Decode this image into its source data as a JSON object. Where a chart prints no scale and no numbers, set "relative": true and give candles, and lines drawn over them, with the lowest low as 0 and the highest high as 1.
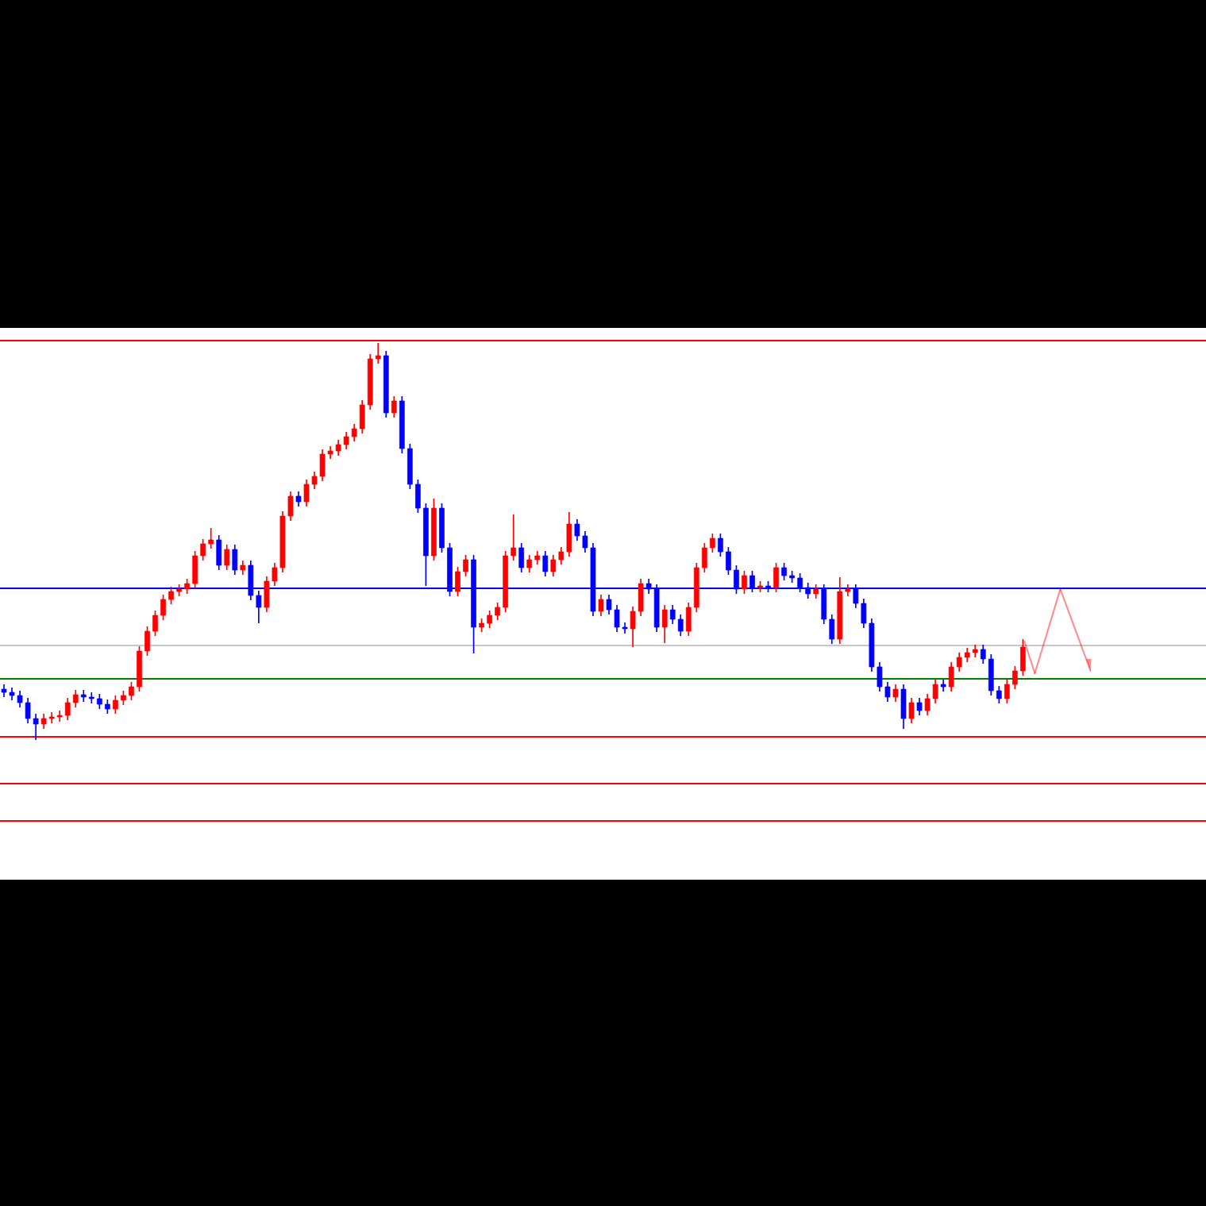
{
  "chart_data": {
    "type": "candlestick",
    "relative": true,
    "categories": [
      null,
      null,
      null,
      null,
      null,
      null,
      null,
      null,
      null,
      null,
      null,
      null,
      null,
      null,
      null,
      null,
      null,
      null,
      null,
      null,
      null,
      null,
      null,
      null,
      null,
      null,
      null,
      null,
      null,
      null,
      null,
      null,
      null,
      null,
      null,
      null,
      null,
      null,
      null,
      null,
      null,
      null,
      null,
      null,
      null,
      null,
      null,
      null,
      null,
      null,
      null,
      null,
      null,
      null,
      null,
      null,
      null,
      null,
      null,
      null,
      null,
      null,
      null,
      null,
      null,
      null,
      null,
      null,
      null,
      null,
      null,
      null,
      null,
      null,
      null,
      null,
      null,
      null,
      null,
      null,
      null,
      null,
      null,
      null,
      null,
      null,
      null,
      null,
      null,
      null,
      null,
      null,
      null,
      null,
      null,
      null,
      null,
      null,
      null,
      null,
      null,
      null,
      null,
      null,
      null,
      null,
      null,
      null,
      null,
      null,
      null,
      null,
      null,
      null,
      null,
      null,
      null,
      null,
      null,
      null,
      null,
      null,
      null,
      null,
      null,
      null,
      null,
      null,
      null
    ],
    "ohlc": [
      [
        0.128,
        0.14,
        0.108,
        0.12
      ],
      [
        0.12,
        0.132,
        0.1,
        0.112
      ],
      [
        0.112,
        0.124,
        0.082,
        0.094
      ],
      [
        0.094,
        0.106,
        0.042,
        0.054
      ],
      [
        0.054,
        0.066,
        0,
        0.04
      ],
      [
        0.04,
        0.066,
        0.028,
        0.054
      ],
      [
        0.054,
        0.07,
        0.042,
        0.058
      ],
      [
        0.058,
        0.074,
        0.046,
        0.062
      ],
      [
        0.062,
        0.106,
        0.05,
        0.094
      ],
      [
        0.094,
        0.126,
        0.082,
        0.114
      ],
      [
        0.114,
        0.126,
        0.096,
        0.108
      ],
      [
        0.108,
        0.12,
        0.092,
        0.104
      ],
      [
        0.104,
        0.116,
        0.078,
        0.09
      ],
      [
        0.09,
        0.102,
        0.066,
        0.078
      ],
      [
        0.078,
        0.112,
        0.066,
        0.1
      ],
      [
        0.1,
        0.124,
        0.088,
        0.112
      ],
      [
        0.112,
        0.146,
        0.1,
        0.134
      ],
      [
        0.134,
        0.236,
        0.122,
        0.224
      ],
      [
        0.224,
        0.286,
        0.212,
        0.274
      ],
      [
        0.274,
        0.326,
        0.262,
        0.314
      ],
      [
        0.314,
        0.366,
        0.302,
        0.354
      ],
      [
        0.354,
        0.386,
        0.342,
        0.374
      ],
      [
        0.374,
        0.392,
        0.362,
        0.38
      ],
      [
        0.38,
        0.406,
        0.368,
        0.394
      ],
      [
        0.394,
        0.476,
        0.382,
        0.464
      ],
      [
        0.464,
        0.506,
        0.452,
        0.494
      ],
      [
        0.494,
        0.534,
        0.482,
        0.504
      ],
      [
        0.504,
        0.516,
        0.428,
        0.44
      ],
      [
        0.44,
        0.492,
        0.428,
        0.48
      ],
      [
        0.48,
        0.492,
        0.416,
        0.428
      ],
      [
        0.428,
        0.452,
        0.416,
        0.44
      ],
      [
        0.44,
        0.452,
        0.352,
        0.364
      ],
      [
        0.364,
        0.376,
        0.294,
        0.334
      ],
      [
        0.334,
        0.412,
        0.322,
        0.4
      ],
      [
        0.4,
        0.446,
        0.388,
        0.434
      ],
      [
        0.434,
        0.576,
        0.422,
        0.564
      ],
      [
        0.564,
        0.626,
        0.552,
        0.614
      ],
      [
        0.614,
        0.626,
        0.588,
        0.6
      ],
      [
        0.6,
        0.656,
        0.588,
        0.644
      ],
      [
        0.644,
        0.676,
        0.632,
        0.664
      ],
      [
        0.664,
        0.732,
        0.652,
        0.72
      ],
      [
        0.72,
        0.74,
        0.708,
        0.728
      ],
      [
        0.728,
        0.756,
        0.716,
        0.744
      ],
      [
        0.744,
        0.776,
        0.732,
        0.764
      ],
      [
        0.764,
        0.796,
        0.752,
        0.784
      ],
      [
        0.784,
        0.856,
        0.772,
        0.844
      ],
      [
        0.844,
        0.972,
        0.832,
        0.96
      ],
      [
        0.96,
        1.0,
        0.948,
        0.968
      ],
      [
        0.968,
        0.98,
        0.812,
        0.824
      ],
      [
        0.824,
        0.866,
        0.812,
        0.854
      ],
      [
        0.854,
        0.866,
        0.722,
        0.734
      ],
      [
        0.734,
        0.746,
        0.632,
        0.644
      ],
      [
        0.644,
        0.656,
        0.572,
        0.584
      ],
      [
        0.584,
        0.596,
        0.388,
        0.464
      ],
      [
        0.464,
        0.608,
        0.452,
        0.584
      ],
      [
        0.584,
        0.596,
        0.472,
        0.484
      ],
      [
        0.484,
        0.496,
        0.362,
        0.374
      ],
      [
        0.374,
        0.436,
        0.362,
        0.424
      ],
      [
        0.424,
        0.466,
        0.412,
        0.454
      ],
      [
        0.454,
        0.466,
        0.218,
        0.284
      ],
      [
        0.284,
        0.306,
        0.272,
        0.294
      ],
      [
        0.294,
        0.326,
        0.282,
        0.314
      ],
      [
        0.314,
        0.346,
        0.302,
        0.334
      ],
      [
        0.334,
        0.476,
        0.322,
        0.464
      ],
      [
        0.464,
        0.568,
        0.452,
        0.484
      ],
      [
        0.484,
        0.496,
        0.422,
        0.434
      ],
      [
        0.434,
        0.466,
        0.422,
        0.454
      ],
      [
        0.454,
        0.476,
        0.442,
        0.464
      ],
      [
        0.464,
        0.476,
        0.412,
        0.424
      ],
      [
        0.424,
        0.466,
        0.412,
        0.454
      ],
      [
        0.454,
        0.486,
        0.442,
        0.474
      ],
      [
        0.474,
        0.574,
        0.462,
        0.544
      ],
      [
        0.544,
        0.556,
        0.502,
        0.514
      ],
      [
        0.514,
        0.526,
        0.472,
        0.484
      ],
      [
        0.484,
        0.496,
        0.312,
        0.324
      ],
      [
        0.324,
        0.366,
        0.312,
        0.354
      ],
      [
        0.354,
        0.366,
        0.316,
        0.328
      ],
      [
        0.328,
        0.34,
        0.272,
        0.284
      ],
      [
        0.284,
        0.296,
        0.268,
        0.28
      ],
      [
        0.28,
        0.336,
        0.234,
        0.324
      ],
      [
        0.324,
        0.406,
        0.312,
        0.394
      ],
      [
        0.394,
        0.406,
        0.368,
        0.38
      ],
      [
        0.38,
        0.392,
        0.272,
        0.284
      ],
      [
        0.284,
        0.34,
        0.244,
        0.328
      ],
      [
        0.328,
        0.34,
        0.292,
        0.304
      ],
      [
        0.304,
        0.316,
        0.262,
        0.274
      ],
      [
        0.274,
        0.346,
        0.262,
        0.334
      ],
      [
        0.334,
        0.446,
        0.322,
        0.434
      ],
      [
        0.434,
        0.496,
        0.422,
        0.484
      ],
      [
        0.484,
        0.52,
        0.472,
        0.508
      ],
      [
        0.508,
        0.52,
        0.462,
        0.474
      ],
      [
        0.474,
        0.486,
        0.416,
        0.428
      ],
      [
        0.428,
        0.44,
        0.368,
        0.38
      ],
      [
        0.38,
        0.426,
        0.368,
        0.414
      ],
      [
        0.414,
        0.426,
        0.372,
        0.384
      ],
      [
        0.384,
        0.4,
        0.372,
        0.388
      ],
      [
        0.388,
        0.4,
        0.372,
        0.384
      ],
      [
        0.384,
        0.446,
        0.372,
        0.434
      ],
      [
        0.434,
        0.446,
        0.402,
        0.414
      ],
      [
        0.414,
        0.426,
        0.396,
        0.408
      ],
      [
        0.408,
        0.42,
        0.372,
        0.384
      ],
      [
        0.384,
        0.396,
        0.356,
        0.368
      ],
      [
        0.368,
        0.392,
        0.356,
        0.38
      ],
      [
        0.38,
        0.392,
        0.292,
        0.304
      ],
      [
        0.304,
        0.316,
        0.242,
        0.254
      ],
      [
        0.254,
        0.41,
        0.242,
        0.374
      ],
      [
        0.374,
        0.392,
        0.362,
        0.38
      ],
      [
        0.38,
        0.392,
        0.332,
        0.344
      ],
      [
        0.344,
        0.356,
        0.282,
        0.294
      ],
      [
        0.294,
        0.306,
        0.172,
        0.184
      ],
      [
        0.184,
        0.196,
        0.122,
        0.134
      ],
      [
        0.134,
        0.146,
        0.096,
        0.108
      ],
      [
        0.108,
        0.14,
        0.096,
        0.128
      ],
      [
        0.128,
        0.14,
        0.028,
        0.054
      ],
      [
        0.054,
        0.106,
        0.042,
        0.094
      ],
      [
        0.094,
        0.106,
        0.062,
        0.074
      ],
      [
        0.074,
        0.116,
        0.062,
        0.104
      ],
      [
        0.104,
        0.152,
        0.092,
        0.14
      ],
      [
        0.14,
        0.152,
        0.122,
        0.134
      ],
      [
        0.134,
        0.196,
        0.122,
        0.184
      ],
      [
        0.184,
        0.22,
        0.172,
        0.208
      ],
      [
        0.208,
        0.232,
        0.196,
        0.22
      ],
      [
        0.22,
        0.24,
        0.208,
        0.228
      ],
      [
        0.228,
        0.24,
        0.192,
        0.204
      ],
      [
        0.204,
        0.216,
        0.112,
        0.124
      ],
      [
        0.124,
        0.136,
        0.092,
        0.104
      ],
      [
        0.104,
        0.152,
        0.092,
        0.14
      ],
      [
        0.14,
        0.186,
        0.128,
        0.174
      ],
      [
        0.174,
        0.254,
        0.162,
        0.234
      ]
    ],
    "colors": [
      "#0000ff",
      "#0000ff",
      "#0000ff",
      "#0000ff",
      "#0000ff",
      "#ff0000",
      "#ff0000",
      "#ff0000",
      "#ff0000",
      "#ff0000",
      "#0000ff",
      "#0000ff",
      "#0000ff",
      "#0000ff",
      "#ff0000",
      "#ff0000",
      "#ff0000",
      "#ff0000",
      "#ff0000",
      "#ff0000",
      "#ff0000",
      "#ff0000",
      "#ff0000",
      "#ff0000",
      "#ff0000",
      "#ff0000",
      "#ff0000",
      "#0000ff",
      "#ff0000",
      "#0000ff",
      "#ff0000",
      "#0000ff",
      "#0000ff",
      "#ff0000",
      "#ff0000",
      "#ff0000",
      "#ff0000",
      "#0000ff",
      "#ff0000",
      "#ff0000",
      "#ff0000",
      "#ff0000",
      "#ff0000",
      "#ff0000",
      "#ff0000",
      "#ff0000",
      "#ff0000",
      "#ff0000",
      "#0000ff",
      "#ff0000",
      "#0000ff",
      "#0000ff",
      "#0000ff",
      "#0000ff",
      "#ff0000",
      "#0000ff",
      "#0000ff",
      "#ff0000",
      "#ff0000",
      "#0000ff",
      "#ff0000",
      "#ff0000",
      "#ff0000",
      "#ff0000",
      "#ff0000",
      "#0000ff",
      "#ff0000",
      "#ff0000",
      "#0000ff",
      "#ff0000",
      "#ff0000",
      "#ff0000",
      "#0000ff",
      "#0000ff",
      "#0000ff",
      "#ff0000",
      "#0000ff",
      "#0000ff",
      "#0000ff",
      "#ff0000",
      "#ff0000",
      "#0000ff",
      "#0000ff",
      "#ff0000",
      "#0000ff",
      "#0000ff",
      "#ff0000",
      "#ff0000",
      "#ff0000",
      "#ff0000",
      "#0000ff",
      "#0000ff",
      "#0000ff",
      "#ff0000",
      "#0000ff",
      "#ff0000",
      "#0000ff",
      "#ff0000",
      "#0000ff",
      "#0000ff",
      "#0000ff",
      "#0000ff",
      "#ff0000",
      "#0000ff",
      "#0000ff",
      "#ff0000",
      "#ff0000",
      "#0000ff",
      "#0000ff",
      "#0000ff",
      "#0000ff",
      "#0000ff",
      "#ff0000",
      "#0000ff",
      "#ff0000",
      "#0000ff",
      "#ff0000",
      "#ff0000",
      "#0000ff",
      "#ff0000",
      "#ff0000",
      "#ff0000",
      "#ff0000",
      "#0000ff",
      "#0000ff",
      "#0000ff",
      "#ff0000",
      "#ff0000",
      "#ff0000"
    ],
    "ref_lines": [
      {
        "axis": "y",
        "value": 1.006,
        "color": "#ff0000"
      },
      {
        "axis": "y",
        "value": 0.382,
        "color": "#0000ff"
      },
      {
        "axis": "y",
        "value": 0.238,
        "color": "#c8c8c8"
      },
      {
        "axis": "y",
        "value": 0.154,
        "color": "#008000"
      },
      {
        "axis": "y",
        "value": 0.008,
        "color": "#ff0000"
      },
      {
        "axis": "y",
        "value": -0.11,
        "color": "#ff0000"
      },
      {
        "axis": "y",
        "value": -0.204,
        "color": "#ff0000"
      }
    ],
    "legend": false
  }
}
